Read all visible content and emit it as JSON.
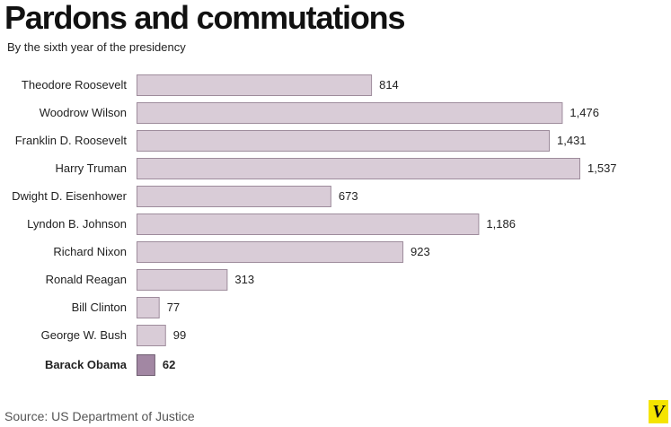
{
  "source": "Source: US Department of Justice",
  "logo_text": "V",
  "colors": {
    "bar": "#d9ccd7",
    "bar_stroke": "#9e8c9c",
    "highlight": "#a287a3",
    "highlight_stroke": "#6e5c70"
  },
  "chart_data": {
    "type": "bar",
    "orientation": "horizontal",
    "title": "Pardons and commutations",
    "subtitle": "By the sixth year of the presidency",
    "categories": [
      "Theodore Roosevelt",
      "Woodrow Wilson",
      "Franklin D. Roosevelt",
      "Harry Truman",
      "Dwight D. Eisenhower",
      "Lyndon B. Johnson",
      "Richard Nixon",
      "Ronald Reagan",
      "Bill Clinton",
      "George W. Bush",
      "Barack Obama"
    ],
    "values": [
      814,
      1476,
      1431,
      1537,
      673,
      1186,
      923,
      313,
      77,
      99,
      62
    ],
    "value_labels": [
      "814",
      "1,476",
      "1,431",
      "1,537",
      "673",
      "1,186",
      "923",
      "313",
      "77",
      "99",
      "62"
    ],
    "highlight": [
      "Barack Obama"
    ],
    "xlim": [
      0,
      1537
    ],
    "grid": false,
    "legend": "none"
  }
}
